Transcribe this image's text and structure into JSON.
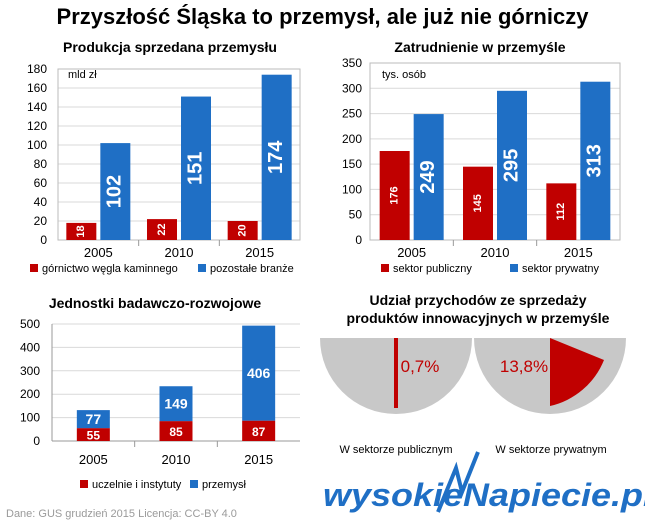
{
  "main_title": "Przyszłość Śląska to przemysł, ale już nie górniczy",
  "footer": {
    "source": "Dane: GUS  grudzień 2015  Licencja: CC-BY 4.0",
    "logo_text": "wysokieNapiecie.pl"
  },
  "colors": {
    "red": "#c00000",
    "blue": "#1f6fc5",
    "pie_gray": "#c8c8c8",
    "grid": "#d9d9d9"
  },
  "chart_data": [
    {
      "id": "produkcja",
      "type": "bar",
      "title": "Produkcja sprzedana przemysłu",
      "unit_label": "mld zł",
      "categories": [
        "2005",
        "2010",
        "2015"
      ],
      "ylim": [
        0,
        180
      ],
      "yticks": [
        0,
        20,
        40,
        60,
        80,
        100,
        120,
        140,
        160,
        180
      ],
      "series": [
        {
          "name": "górnictwo węgla kaminnego",
          "color": "#c00000",
          "values": [
            18,
            22,
            20
          ]
        },
        {
          "name": "pozostałe branże",
          "color": "#1f6fc5",
          "values": [
            102,
            151,
            174
          ]
        }
      ],
      "grid": true,
      "legend": "bottom"
    },
    {
      "id": "zatrudnienie",
      "type": "bar",
      "title": "Zatrudnienie w przemyśle",
      "unit_label": "tys. osób",
      "categories": [
        "2005",
        "2010",
        "2015"
      ],
      "ylim": [
        0,
        350
      ],
      "yticks": [
        0,
        50,
        100,
        150,
        200,
        250,
        300,
        350
      ],
      "series": [
        {
          "name": "sektor publiczny",
          "color": "#c00000",
          "values": [
            176,
            145,
            112
          ]
        },
        {
          "name": "sektor prywatny",
          "color": "#1f6fc5",
          "values": [
            249,
            295,
            313
          ]
        }
      ],
      "grid": true,
      "legend": "bottom"
    },
    {
      "id": "jednostki",
      "type": "bar",
      "stacked": true,
      "title": "Jednostki badawczo-rozwojowe",
      "categories": [
        "2005",
        "2010",
        "2015"
      ],
      "ylim": [
        0,
        500
      ],
      "yticks": [
        0,
        100,
        200,
        300,
        400,
        500
      ],
      "series": [
        {
          "name": "uczelnie i instytuty",
          "color": "#c00000",
          "values": [
            55,
            85,
            87
          ]
        },
        {
          "name": "przemysł",
          "color": "#1f6fc5",
          "values": [
            77,
            149,
            406
          ]
        }
      ],
      "grid": true,
      "legend": "bottom"
    },
    {
      "id": "udzial",
      "type": "pie",
      "title_lines": [
        "Udział przychodów ze sprzedaży",
        "produktów innowacyjnych w przemyśle"
      ],
      "pies": [
        {
          "label": "W sektorze publicznym",
          "value": 0.7,
          "value_label": "0,7%"
        },
        {
          "label": "W sektorze prywatnym",
          "value": 13.8,
          "value_label": "13,8%"
        }
      ]
    }
  ]
}
